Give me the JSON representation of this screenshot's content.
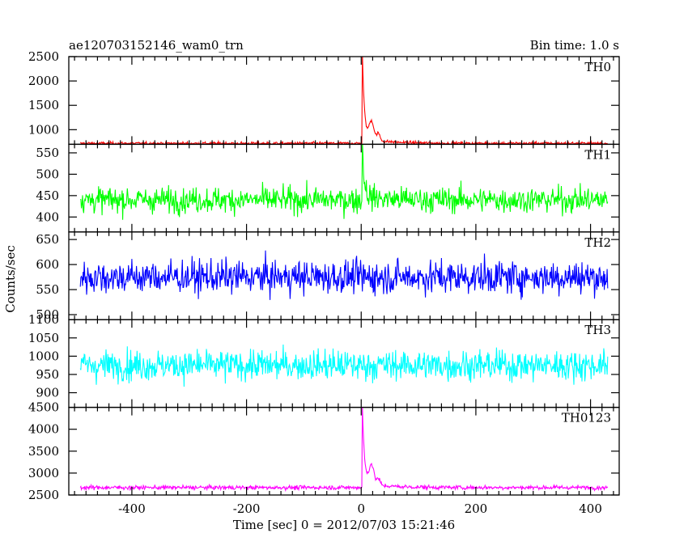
{
  "chart_data": {
    "type": "line",
    "title_left": "ae120703152146_wam0_trn",
    "title_right": "Bin time: 1.0 s",
    "xlabel": "Time [sec] 0 = 2012/07/03 15:21:46",
    "ylabel": "Counts/sec",
    "xlim": [
      -510,
      450
    ],
    "x_range": [
      -490,
      430
    ],
    "x_ticks": [
      -400,
      -200,
      0,
      200,
      400
    ],
    "grid": false,
    "panels": [
      {
        "name": "TH0",
        "color": "#ff0000",
        "ylim": [
          700,
          2500
        ],
        "y_ticks": [
          1000,
          1500,
          2000,
          2500
        ],
        "baseline": 720,
        "noise": 25,
        "burst": {
          "t": 2,
          "peak": 2480,
          "secondary": [
            {
              "t": 18,
              "amp": 380,
              "width": 6
            },
            {
              "t": 30,
              "amp": 150,
              "width": 4
            }
          ]
        }
      },
      {
        "name": "TH1",
        "color": "#00ff00",
        "ylim": [
          365,
          570
        ],
        "y_ticks": [
          400,
          450,
          500,
          550
        ],
        "baseline": 440,
        "noise": 25,
        "burst": {
          "t": 2,
          "peak": 560,
          "secondary": []
        }
      },
      {
        "name": "TH2",
        "color": "#0000ff",
        "ylim": [
          490,
          665
        ],
        "y_ticks": [
          500,
          550,
          600,
          650
        ],
        "baseline": 575,
        "noise": 28,
        "burst": null
      },
      {
        "name": "TH3",
        "color": "#00ffff",
        "ylim": [
          860,
          1100
        ],
        "y_ticks": [
          900,
          950,
          1000,
          1050,
          1100
        ],
        "baseline": 975,
        "noise": 35,
        "burst": null
      },
      {
        "name": "TH0123",
        "color": "#ff00ff",
        "ylim": [
          2500,
          4500
        ],
        "y_ticks": [
          2500,
          3000,
          3500,
          4000,
          4500
        ],
        "baseline": 2670,
        "noise": 40,
        "burst": {
          "t": 2,
          "peak": 4450,
          "secondary": [
            {
              "t": 18,
              "amp": 450,
              "width": 6
            },
            {
              "t": 30,
              "amp": 150,
              "width": 4
            }
          ]
        }
      }
    ]
  }
}
